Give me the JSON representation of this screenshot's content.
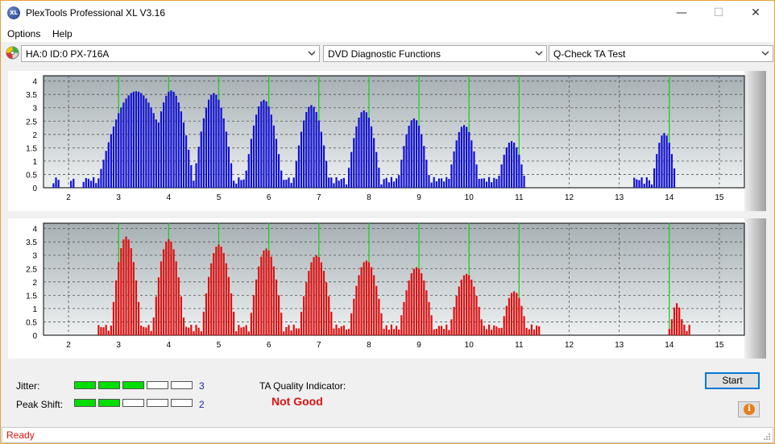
{
  "window": {
    "title": "PlexTools Professional XL V3.16",
    "icon_text": "XL",
    "minimize": "—",
    "maximize": "☐",
    "close": "✕"
  },
  "menu": {
    "items": [
      "Options",
      "Help"
    ]
  },
  "toolbar": {
    "drive": "HA:0 ID:0  PX-716A",
    "function": "DVD Diagnostic Functions",
    "test": "Q-Check TA Test"
  },
  "chart_data": [
    {
      "type": "bar",
      "color": "#1010d0",
      "title": "",
      "xlabel": "",
      "ylabel": "",
      "xlim": [
        1.5,
        15.5
      ],
      "ylim": [
        0,
        4.2
      ],
      "xticks": [
        "2",
        "3",
        "4",
        "5",
        "6",
        "7",
        "8",
        "9",
        "10",
        "11",
        "12",
        "13",
        "14",
        "15"
      ],
      "yticks": [
        "0",
        "0.5",
        "1",
        "1.5",
        "2",
        "2.5",
        "3",
        "3.5",
        "4"
      ],
      "green_lines": [
        3,
        4,
        5,
        6,
        7,
        8,
        9,
        10,
        11,
        14
      ],
      "peaks": [
        {
          "center": 3.35,
          "height": 3.62,
          "width": 0.8
        },
        {
          "center": 4.05,
          "height": 3.65,
          "width": 0.47
        },
        {
          "center": 4.9,
          "height": 3.55,
          "width": 0.42
        },
        {
          "center": 5.9,
          "height": 3.3,
          "width": 0.4
        },
        {
          "center": 6.85,
          "height": 3.1,
          "width": 0.38
        },
        {
          "center": 7.9,
          "height": 2.9,
          "width": 0.36
        },
        {
          "center": 8.9,
          "height": 2.6,
          "width": 0.34
        },
        {
          "center": 9.9,
          "height": 2.35,
          "width": 0.33
        },
        {
          "center": 10.85,
          "height": 1.75,
          "width": 0.3
        },
        {
          "center": 13.9,
          "height": 2.05,
          "width": 0.26
        }
      ],
      "ranges": [
        [
          1.7,
          1.85
        ],
        [
          2.05,
          2.1
        ],
        [
          2.25,
          11.15
        ],
        [
          13.3,
          14.15
        ]
      ]
    },
    {
      "type": "bar",
      "color": "#dd1010",
      "title": "",
      "xlabel": "",
      "ylabel": "",
      "xlim": [
        1.5,
        15.5
      ],
      "ylim": [
        0,
        4.2
      ],
      "xticks": [
        "2",
        "3",
        "4",
        "5",
        "6",
        "7",
        "8",
        "9",
        "10",
        "11",
        "12",
        "13",
        "14",
        "15"
      ],
      "yticks": [
        "0",
        "0.5",
        "1",
        "1.5",
        "2",
        "2.5",
        "3",
        "3.5",
        "4"
      ],
      "green_lines": [
        3,
        4,
        5,
        6,
        7,
        8,
        9,
        10,
        11,
        14
      ],
      "peaks": [
        {
          "center": 3.15,
          "height": 3.7,
          "width": 0.32
        },
        {
          "center": 4.0,
          "height": 3.6,
          "width": 0.34
        },
        {
          "center": 5.0,
          "height": 3.4,
          "width": 0.36
        },
        {
          "center": 5.95,
          "height": 3.25,
          "width": 0.36
        },
        {
          "center": 6.95,
          "height": 3.0,
          "width": 0.37
        },
        {
          "center": 7.95,
          "height": 2.8,
          "width": 0.37
        },
        {
          "center": 8.95,
          "height": 2.55,
          "width": 0.37
        },
        {
          "center": 9.95,
          "height": 2.3,
          "width": 0.36
        },
        {
          "center": 10.9,
          "height": 1.65,
          "width": 0.28
        },
        {
          "center": 14.15,
          "height": 1.2,
          "width": 0.15
        }
      ],
      "ranges": [
        [
          2.55,
          11.45
        ],
        [
          13.98,
          14.45
        ]
      ]
    }
  ],
  "meters": {
    "jitter": {
      "label": "Jitter:",
      "value": "3",
      "level": 3,
      "segments": 5
    },
    "peak_shift": {
      "label": "Peak Shift:",
      "value": "2",
      "level": 2,
      "segments": 5
    }
  },
  "ta": {
    "label": "TA Quality Indicator:",
    "result": "Not Good"
  },
  "buttons": {
    "start": "Start",
    "info": "i"
  },
  "status": {
    "text": "Ready"
  }
}
